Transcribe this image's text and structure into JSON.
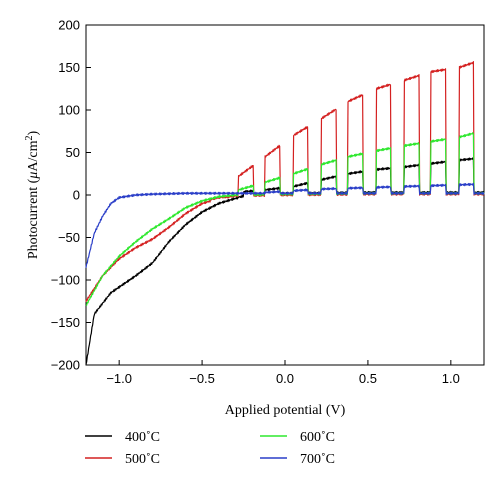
{
  "chart_data": {
    "type": "line",
    "title": "",
    "xlabel": "Applied potential (V)",
    "ylabel_main": "Photocurrent (",
    "ylabel_mu": "μ",
    "ylabel_unit": "A/cm",
    "ylabel_sup": "2",
    "ylabel_close": ")",
    "xlim": [
      -1.2,
      1.2
    ],
    "ylim": [
      -200,
      200
    ],
    "x_ticks": [
      -1.0,
      -0.5,
      0.0,
      0.5,
      1.0
    ],
    "x_tick_labels": [
      "−1.0",
      "−0.5",
      "0.0",
      "0.5",
      "1.0"
    ],
    "y_ticks": [
      -200,
      -150,
      -100,
      -50,
      0,
      50,
      100,
      150,
      200
    ],
    "y_tick_labels": [
      "−200",
      "−150",
      "−100",
      "−50",
      "0",
      "50",
      "100",
      "150",
      "200"
    ],
    "grid": false,
    "legend_position": "bottom",
    "chopped_light": {
      "on_start_x": [
        -0.95,
        -0.78,
        -0.62,
        -0.45,
        -0.28,
        -0.12,
        0.05,
        0.22,
        0.38,
        0.55,
        0.72,
        0.88,
        1.05
      ],
      "period_on": 0.09
    },
    "series": [
      {
        "name": "400˚C",
        "color": "#000000",
        "dark_current": [
          [
            -1.2,
            -200
          ],
          [
            -1.15,
            -140
          ],
          [
            -1.05,
            -115
          ],
          [
            -0.9,
            -95
          ],
          [
            -0.8,
            -80
          ],
          [
            -0.7,
            -55
          ],
          [
            -0.6,
            -35
          ],
          [
            -0.5,
            -20
          ],
          [
            -0.4,
            -10
          ],
          [
            -0.3,
            -4
          ],
          [
            -0.2,
            0
          ],
          [
            0.0,
            2
          ],
          [
            0.5,
            3
          ],
          [
            1.2,
            3
          ]
        ],
        "light_current": [
          [
            -0.3,
            3
          ],
          [
            -0.12,
            6
          ],
          [
            0.05,
            10
          ],
          [
            0.22,
            18
          ],
          [
            0.38,
            25
          ],
          [
            0.55,
            30
          ],
          [
            0.72,
            33
          ],
          [
            0.88,
            37
          ],
          [
            1.05,
            41
          ],
          [
            1.2,
            44
          ]
        ]
      },
      {
        "name": "500˚C",
        "color": "#d42020",
        "dark_current": [
          [
            -1.2,
            -125
          ],
          [
            -1.1,
            -95
          ],
          [
            -1.0,
            -75
          ],
          [
            -0.9,
            -62
          ],
          [
            -0.8,
            -52
          ],
          [
            -0.7,
            -38
          ],
          [
            -0.6,
            -22
          ],
          [
            -0.5,
            -10
          ],
          [
            -0.4,
            -4
          ],
          [
            -0.3,
            -1
          ],
          [
            0.0,
            0
          ],
          [
            0.5,
            1
          ],
          [
            1.2,
            1
          ]
        ],
        "light_current": [
          [
            -0.45,
            8
          ],
          [
            -0.28,
            22
          ],
          [
            -0.12,
            45
          ],
          [
            0.05,
            70
          ],
          [
            0.22,
            90
          ],
          [
            0.38,
            110
          ],
          [
            0.55,
            125
          ],
          [
            0.72,
            135
          ],
          [
            0.88,
            145
          ],
          [
            1.05,
            150
          ],
          [
            1.2,
            160
          ]
        ]
      },
      {
        "name": "600˚C",
        "color": "#2ee82e",
        "dark_current": [
          [
            -1.2,
            -130
          ],
          [
            -1.1,
            -95
          ],
          [
            -1.0,
            -72
          ],
          [
            -0.9,
            -55
          ],
          [
            -0.8,
            -40
          ],
          [
            -0.7,
            -28
          ],
          [
            -0.6,
            -15
          ],
          [
            -0.5,
            -7
          ],
          [
            -0.4,
            -2
          ],
          [
            -0.3,
            0
          ],
          [
            0.0,
            1
          ],
          [
            0.5,
            2
          ],
          [
            1.2,
            2
          ]
        ],
        "light_current": [
          [
            -0.28,
            6
          ],
          [
            -0.12,
            15
          ],
          [
            0.05,
            25
          ],
          [
            0.22,
            36
          ],
          [
            0.38,
            45
          ],
          [
            0.55,
            52
          ],
          [
            0.72,
            58
          ],
          [
            0.88,
            63
          ],
          [
            1.05,
            68
          ],
          [
            1.2,
            76
          ]
        ]
      },
      {
        "name": "700˚C",
        "color": "#2a3ec8",
        "dark_current": [
          [
            -1.2,
            -85
          ],
          [
            -1.15,
            -45
          ],
          [
            -1.1,
            -25
          ],
          [
            -1.05,
            -10
          ],
          [
            -1.0,
            -3
          ],
          [
            -0.9,
            0
          ],
          [
            -0.8,
            1
          ],
          [
            -0.6,
            2
          ],
          [
            0.0,
            2
          ],
          [
            1.2,
            2
          ]
        ],
        "light_current": [
          [
            -0.12,
            3
          ],
          [
            0.05,
            5
          ],
          [
            0.22,
            7
          ],
          [
            0.38,
            8
          ],
          [
            0.55,
            9
          ],
          [
            0.72,
            10
          ],
          [
            0.88,
            11
          ],
          [
            1.05,
            12
          ],
          [
            1.2,
            13
          ]
        ]
      }
    ]
  }
}
